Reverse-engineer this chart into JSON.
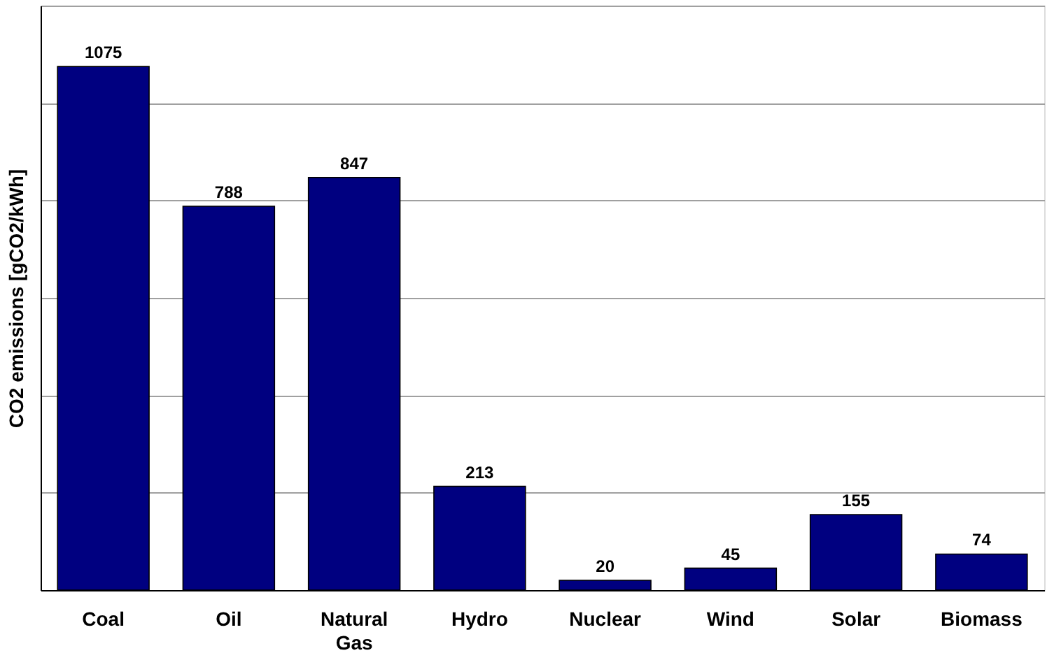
{
  "chart_data": {
    "type": "bar",
    "ylabel": "CO2 emissions [gCO2/kWh]",
    "categories": [
      "Coal",
      "Oil",
      "Natural Gas",
      "Hydro",
      "Nuclear",
      "Wind",
      "Solar",
      "Biomass"
    ],
    "values": [
      1075,
      788,
      847,
      213,
      20,
      45,
      155,
      74
    ],
    "color": "#000080",
    "ylim": [
      0,
      1200
    ],
    "yticks": [
      {
        "value": 0,
        "label": null
      },
      {
        "value": 200,
        "label": null
      },
      {
        "value": 400,
        "label": null
      },
      {
        "value": 600,
        "label": null
      },
      {
        "value": 800,
        "label": null
      },
      {
        "value": 1000,
        "label": null
      },
      {
        "value": 1200,
        "label": null
      }
    ],
    "grid": "y",
    "tick_labels": "x",
    "data_labels": true
  }
}
